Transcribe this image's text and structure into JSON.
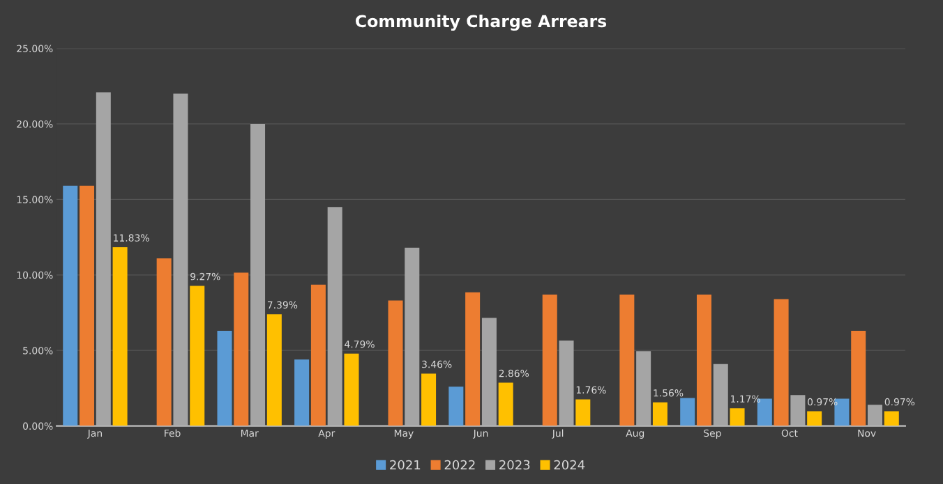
{
  "chart_data": {
    "type": "bar",
    "title": "Community Charge Arrears",
    "categories": [
      "Jan",
      "Feb",
      "Mar",
      "Apr",
      "May",
      "Jun",
      "Jul",
      "Aug",
      "Sep",
      "Oct",
      "Nov"
    ],
    "series": [
      {
        "name": "2021",
        "color": "#5b9bd5",
        "values": [
          15.9,
          null,
          6.3,
          4.4,
          null,
          2.6,
          null,
          null,
          1.85,
          1.8,
          1.8
        ]
      },
      {
        "name": "2022",
        "color": "#ed7d31",
        "values": [
          15.9,
          11.1,
          10.15,
          9.35,
          8.3,
          8.85,
          8.7,
          8.7,
          8.7,
          8.4,
          6.3
        ]
      },
      {
        "name": "2023",
        "color": "#a5a5a5",
        "values": [
          22.1,
          22.0,
          20.0,
          14.5,
          11.8,
          7.15,
          5.65,
          4.95,
          4.1,
          2.05,
          1.4
        ]
      },
      {
        "name": "2024",
        "color": "#ffc000",
        "values": [
          11.83,
          9.27,
          7.39,
          4.79,
          3.46,
          2.86,
          1.76,
          1.56,
          1.17,
          0.97,
          0.97
        ],
        "value_labels": [
          "11.83%",
          "9.27%",
          "7.39%",
          "4.79%",
          "3.46%",
          "2.86%",
          "1.76%",
          "1.56%",
          "1.17%",
          "0.97%",
          "0.97%"
        ]
      }
    ],
    "ylim": [
      0,
      25
    ],
    "yticks": [
      {
        "value": 0,
        "label": "0.00%"
      },
      {
        "value": 5,
        "label": "5.00%"
      },
      {
        "value": 10,
        "label": "10.00%"
      },
      {
        "value": 15,
        "label": "15.00%"
      },
      {
        "value": 20,
        "label": "20.00%"
      },
      {
        "value": 25,
        "label": "25.00%"
      }
    ],
    "grid": "y",
    "legend": "bottom"
  }
}
